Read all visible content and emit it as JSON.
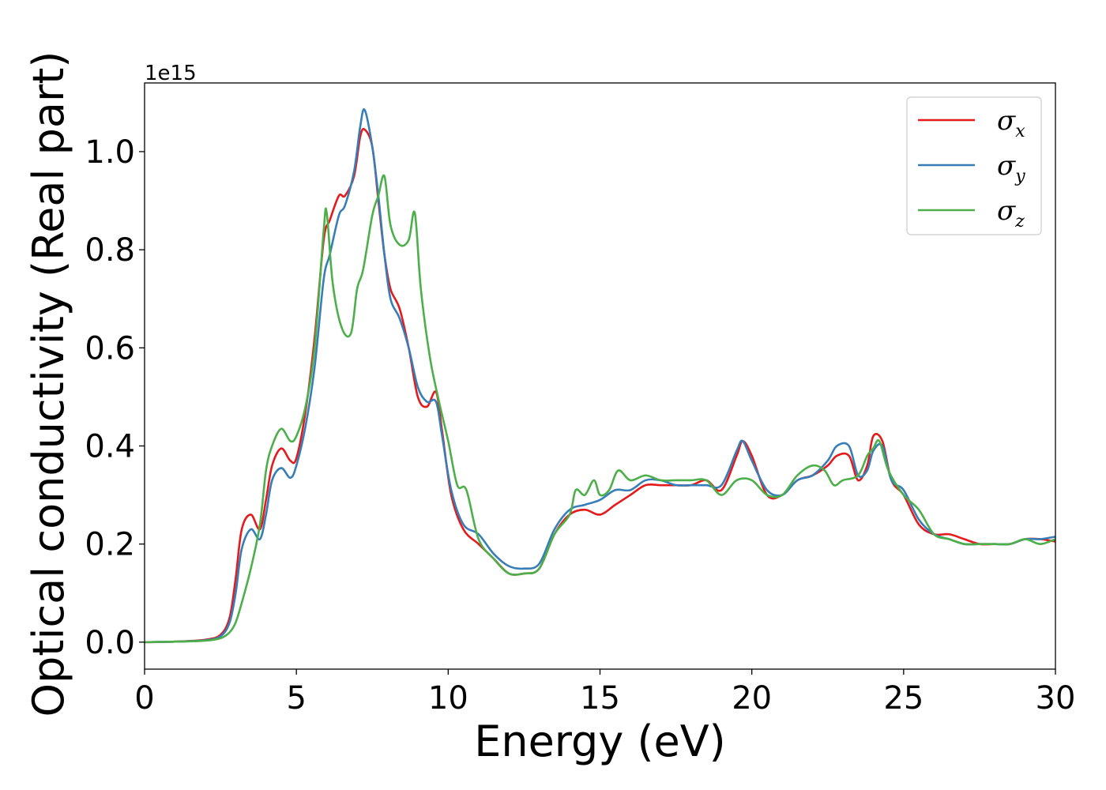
{
  "chart_data": {
    "type": "line",
    "xlabel": "Energy (eV)",
    "ylabel": "Optical conductivity (Real part)",
    "y_offset_label": "1e15",
    "xlim": [
      0,
      30
    ],
    "ylim": [
      -0.055,
      1.14
    ],
    "xticks": [
      0,
      5,
      10,
      15,
      20,
      25,
      30
    ],
    "xtick_labels": [
      "0",
      "5",
      "10",
      "15",
      "20",
      "25",
      "30"
    ],
    "yticks": [
      0.0,
      0.2,
      0.4,
      0.6,
      0.8,
      1.0
    ],
    "ytick_labels": [
      "0.0",
      "0.2",
      "0.4",
      "0.6",
      "0.8",
      "1.0"
    ],
    "grid": false,
    "legend_position": "top-right",
    "series": [
      {
        "name": "σx",
        "symbol": "σ",
        "subscript": "x",
        "color": "#e41a1c",
        "x": [
          0,
          1,
          2,
          2.5,
          2.8,
          3.0,
          3.2,
          3.5,
          3.8,
          4.0,
          4.2,
          4.5,
          4.8,
          5.0,
          5.3,
          5.6,
          5.9,
          6.1,
          6.4,
          6.6,
          6.9,
          7.1,
          7.25,
          7.5,
          7.7,
          7.9,
          8.1,
          8.4,
          8.7,
          9.0,
          9.3,
          9.6,
          9.8,
          10.1,
          10.5,
          11.0,
          11.5,
          12.0,
          12.5,
          13.0,
          13.5,
          14.0,
          14.5,
          15.0,
          15.5,
          16.0,
          16.5,
          17.0,
          17.5,
          18.0,
          18.5,
          19.0,
          19.5,
          19.7,
          20.0,
          20.5,
          21.0,
          21.5,
          22.0,
          22.5,
          22.8,
          23.2,
          23.5,
          23.8,
          24.0,
          24.3,
          24.6,
          25.0,
          25.5,
          26.0,
          26.5,
          27.0,
          27.5,
          28.0,
          28.5,
          29.0,
          29.5,
          30.0
        ],
        "y": [
          0.0,
          0.001,
          0.005,
          0.015,
          0.05,
          0.13,
          0.23,
          0.26,
          0.23,
          0.29,
          0.36,
          0.395,
          0.37,
          0.375,
          0.47,
          0.62,
          0.82,
          0.86,
          0.91,
          0.91,
          0.95,
          1.03,
          1.045,
          1.01,
          0.9,
          0.79,
          0.72,
          0.68,
          0.6,
          0.5,
          0.48,
          0.51,
          0.43,
          0.3,
          0.23,
          0.2,
          0.17,
          0.14,
          0.14,
          0.15,
          0.22,
          0.26,
          0.27,
          0.26,
          0.28,
          0.3,
          0.32,
          0.32,
          0.32,
          0.32,
          0.33,
          0.31,
          0.38,
          0.41,
          0.38,
          0.3,
          0.3,
          0.33,
          0.34,
          0.36,
          0.38,
          0.38,
          0.33,
          0.36,
          0.42,
          0.41,
          0.33,
          0.3,
          0.24,
          0.22,
          0.22,
          0.21,
          0.2,
          0.2,
          0.2,
          0.21,
          0.21,
          0.205
        ]
      },
      {
        "name": "σy",
        "symbol": "σ",
        "subscript": "y",
        "color": "#377eb8",
        "x": [
          0,
          1,
          2,
          2.5,
          2.8,
          3.0,
          3.2,
          3.5,
          3.8,
          4.0,
          4.2,
          4.5,
          4.8,
          5.0,
          5.3,
          5.6,
          5.9,
          6.1,
          6.4,
          6.6,
          6.9,
          7.1,
          7.25,
          7.5,
          7.7,
          7.9,
          8.1,
          8.4,
          8.7,
          9.0,
          9.3,
          9.6,
          9.8,
          10.1,
          10.5,
          11.0,
          11.5,
          12.0,
          12.5,
          13.0,
          13.5,
          14.0,
          14.5,
          15.0,
          15.5,
          16.0,
          16.5,
          17.0,
          17.5,
          18.0,
          18.5,
          19.0,
          19.5,
          19.7,
          20.0,
          20.5,
          21.0,
          21.5,
          22.0,
          22.5,
          22.8,
          23.2,
          23.5,
          23.8,
          24.0,
          24.3,
          24.6,
          25.0,
          25.5,
          26.0,
          26.5,
          27.0,
          27.5,
          28.0,
          28.5,
          29.0,
          29.5,
          30.0
        ],
        "y": [
          0.0,
          0.001,
          0.004,
          0.012,
          0.04,
          0.1,
          0.19,
          0.23,
          0.21,
          0.26,
          0.33,
          0.355,
          0.335,
          0.36,
          0.44,
          0.56,
          0.74,
          0.79,
          0.87,
          0.89,
          0.96,
          1.05,
          1.085,
          1.01,
          0.91,
          0.79,
          0.7,
          0.66,
          0.6,
          0.52,
          0.49,
          0.49,
          0.42,
          0.31,
          0.24,
          0.22,
          0.18,
          0.155,
          0.15,
          0.16,
          0.23,
          0.27,
          0.28,
          0.29,
          0.31,
          0.31,
          0.33,
          0.33,
          0.32,
          0.32,
          0.32,
          0.32,
          0.39,
          0.41,
          0.37,
          0.31,
          0.3,
          0.33,
          0.34,
          0.37,
          0.4,
          0.4,
          0.34,
          0.35,
          0.39,
          0.4,
          0.33,
          0.31,
          0.25,
          0.22,
          0.21,
          0.2,
          0.2,
          0.2,
          0.2,
          0.21,
          0.21,
          0.215
        ]
      },
      {
        "name": "σz",
        "symbol": "σ",
        "subscript": "z",
        "color": "#4daf4a",
        "x": [
          0,
          1,
          2,
          2.5,
          2.8,
          3.0,
          3.2,
          3.5,
          3.8,
          4.0,
          4.2,
          4.5,
          4.8,
          5.0,
          5.3,
          5.6,
          5.9,
          6.0,
          6.2,
          6.5,
          6.8,
          7.0,
          7.2,
          7.5,
          7.7,
          7.9,
          8.1,
          8.4,
          8.7,
          8.9,
          9.1,
          9.4,
          9.7,
          10.0,
          10.3,
          10.6,
          11.0,
          11.5,
          12.0,
          12.5,
          13.0,
          13.5,
          14.0,
          14.2,
          14.5,
          14.8,
          15.0,
          15.3,
          15.6,
          16.0,
          16.5,
          17.0,
          17.5,
          18.0,
          18.5,
          19.0,
          19.5,
          20.0,
          20.5,
          21.0,
          21.5,
          22.0,
          22.4,
          22.7,
          23.0,
          23.5,
          23.8,
          24.0,
          24.2,
          24.5,
          25.0,
          25.5,
          26.0,
          26.5,
          27.0,
          27.5,
          28.0,
          28.5,
          29.0,
          29.5,
          30.0
        ],
        "y": [
          0.0,
          0.001,
          0.003,
          0.008,
          0.02,
          0.04,
          0.08,
          0.15,
          0.24,
          0.35,
          0.4,
          0.435,
          0.41,
          0.42,
          0.48,
          0.6,
          0.84,
          0.875,
          0.73,
          0.64,
          0.63,
          0.72,
          0.76,
          0.87,
          0.91,
          0.95,
          0.85,
          0.81,
          0.82,
          0.875,
          0.72,
          0.58,
          0.49,
          0.41,
          0.32,
          0.31,
          0.21,
          0.17,
          0.14,
          0.14,
          0.15,
          0.22,
          0.26,
          0.31,
          0.3,
          0.33,
          0.3,
          0.31,
          0.35,
          0.33,
          0.34,
          0.33,
          0.33,
          0.33,
          0.33,
          0.3,
          0.33,
          0.33,
          0.3,
          0.3,
          0.34,
          0.36,
          0.35,
          0.32,
          0.33,
          0.34,
          0.38,
          0.395,
          0.41,
          0.35,
          0.3,
          0.27,
          0.22,
          0.21,
          0.2,
          0.2,
          0.2,
          0.2,
          0.21,
          0.2,
          0.21
        ]
      }
    ]
  }
}
